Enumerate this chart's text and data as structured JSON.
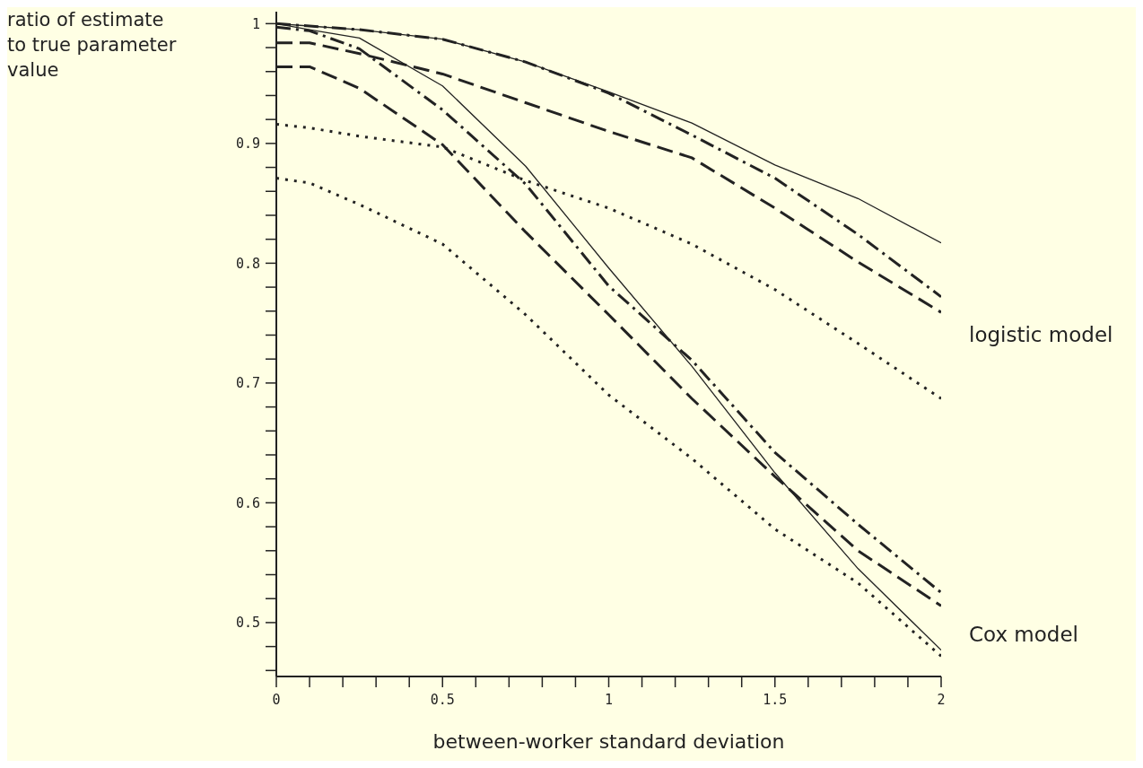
{
  "chart_data": {
    "type": "line",
    "xlabel": "between-worker standard deviation",
    "ylabel": "ratio of estimate to true parameter value",
    "annotations": [
      "logistic model",
      "Cox model"
    ],
    "x": [
      0,
      0.1,
      0.25,
      0.5,
      0.75,
      1,
      1.25,
      1.5,
      1.75,
      2
    ],
    "xlim": [
      0,
      2
    ],
    "ylim": [
      0.455,
      1.01
    ],
    "xticks": [
      0,
      {
        "value": 0.1,
        "label": null
      },
      {
        "value": 0.2,
        "label": null
      },
      {
        "value": 0.3,
        "label": null
      },
      {
        "value": 0.4,
        "label": null
      },
      0.5,
      {
        "value": 0.6,
        "label": null
      },
      {
        "value": 0.7,
        "label": null
      },
      {
        "value": 0.8,
        "label": null
      },
      {
        "value": 0.9,
        "label": null
      },
      1,
      {
        "value": 1.1,
        "label": null
      },
      {
        "value": 1.2,
        "label": null
      },
      {
        "value": 1.3,
        "label": null
      },
      {
        "value": 1.4,
        "label": null
      },
      1.5,
      {
        "value": 1.6,
        "label": null
      },
      {
        "value": 1.7,
        "label": null
      },
      {
        "value": 1.8,
        "label": null
      },
      {
        "value": 1.9,
        "label": null
      },
      2
    ],
    "yticks": [
      {
        "value": 0.46,
        "label": null
      },
      {
        "value": 0.48,
        "label": null
      },
      0.5,
      {
        "value": 0.52,
        "label": null
      },
      {
        "value": 0.54,
        "label": null
      },
      {
        "value": 0.56,
        "label": null
      },
      {
        "value": 0.58,
        "label": null
      },
      0.6,
      {
        "value": 0.62,
        "label": null
      },
      {
        "value": 0.64,
        "label": null
      },
      {
        "value": 0.66,
        "label": null
      },
      {
        "value": 0.68,
        "label": null
      },
      0.7,
      {
        "value": 0.72,
        "label": null
      },
      {
        "value": 0.74,
        "label": null
      },
      {
        "value": 0.76,
        "label": null
      },
      {
        "value": 0.78,
        "label": null
      },
      0.8,
      {
        "value": 0.82,
        "label": null
      },
      {
        "value": 0.84,
        "label": null
      },
      {
        "value": 0.86,
        "label": null
      },
      {
        "value": 0.88,
        "label": null
      },
      0.9,
      {
        "value": 0.92,
        "label": null
      },
      {
        "value": 0.94,
        "label": null
      },
      {
        "value": 0.96,
        "label": null
      },
      {
        "value": 0.98,
        "label": null
      },
      1
    ],
    "grid": false,
    "legend": false,
    "marker": "none",
    "series": [
      {
        "color": "#222222",
        "line_style": "solid",
        "values": [
          1.0,
          0.998,
          0.995,
          0.987,
          0.968,
          0.943,
          0.917,
          0.882,
          0.854,
          0.817
        ]
      },
      {
        "color": "#222222",
        "line_style": "dashdot",
        "values": [
          1.0,
          0.998,
          0.995,
          0.987,
          0.968,
          0.942,
          0.907,
          0.871,
          0.824,
          0.772
        ]
      },
      {
        "color": "#222222",
        "line_style": "dashed",
        "values": [
          0.984,
          0.984,
          0.975,
          0.958,
          0.934,
          0.91,
          0.888,
          0.846,
          0.801,
          0.759
        ]
      },
      {
        "color": "#222222",
        "line_style": "dotted",
        "values": [
          0.916,
          0.913,
          0.906,
          0.897,
          0.869,
          0.846,
          0.816,
          0.778,
          0.733,
          0.687
        ]
      },
      {
        "color": "#222222",
        "line_style": "solid",
        "values": [
          1.0,
          0.995,
          0.988,
          0.948,
          0.881,
          0.796,
          0.714,
          0.625,
          0.545,
          0.477
        ]
      },
      {
        "color": "#222222",
        "line_style": "dashdot",
        "values": [
          0.997,
          0.994,
          0.979,
          0.928,
          0.866,
          0.781,
          0.719,
          0.642,
          0.582,
          0.525
        ]
      },
      {
        "color": "#222222",
        "line_style": "dashed",
        "values": [
          0.964,
          0.964,
          0.946,
          0.899,
          0.826,
          0.757,
          0.687,
          0.622,
          0.56,
          0.514
        ]
      },
      {
        "color": "#222222",
        "line_style": "dotted",
        "values": [
          0.871,
          0.867,
          0.849,
          0.816,
          0.757,
          0.69,
          0.637,
          0.578,
          0.533,
          0.472
        ]
      }
    ]
  }
}
